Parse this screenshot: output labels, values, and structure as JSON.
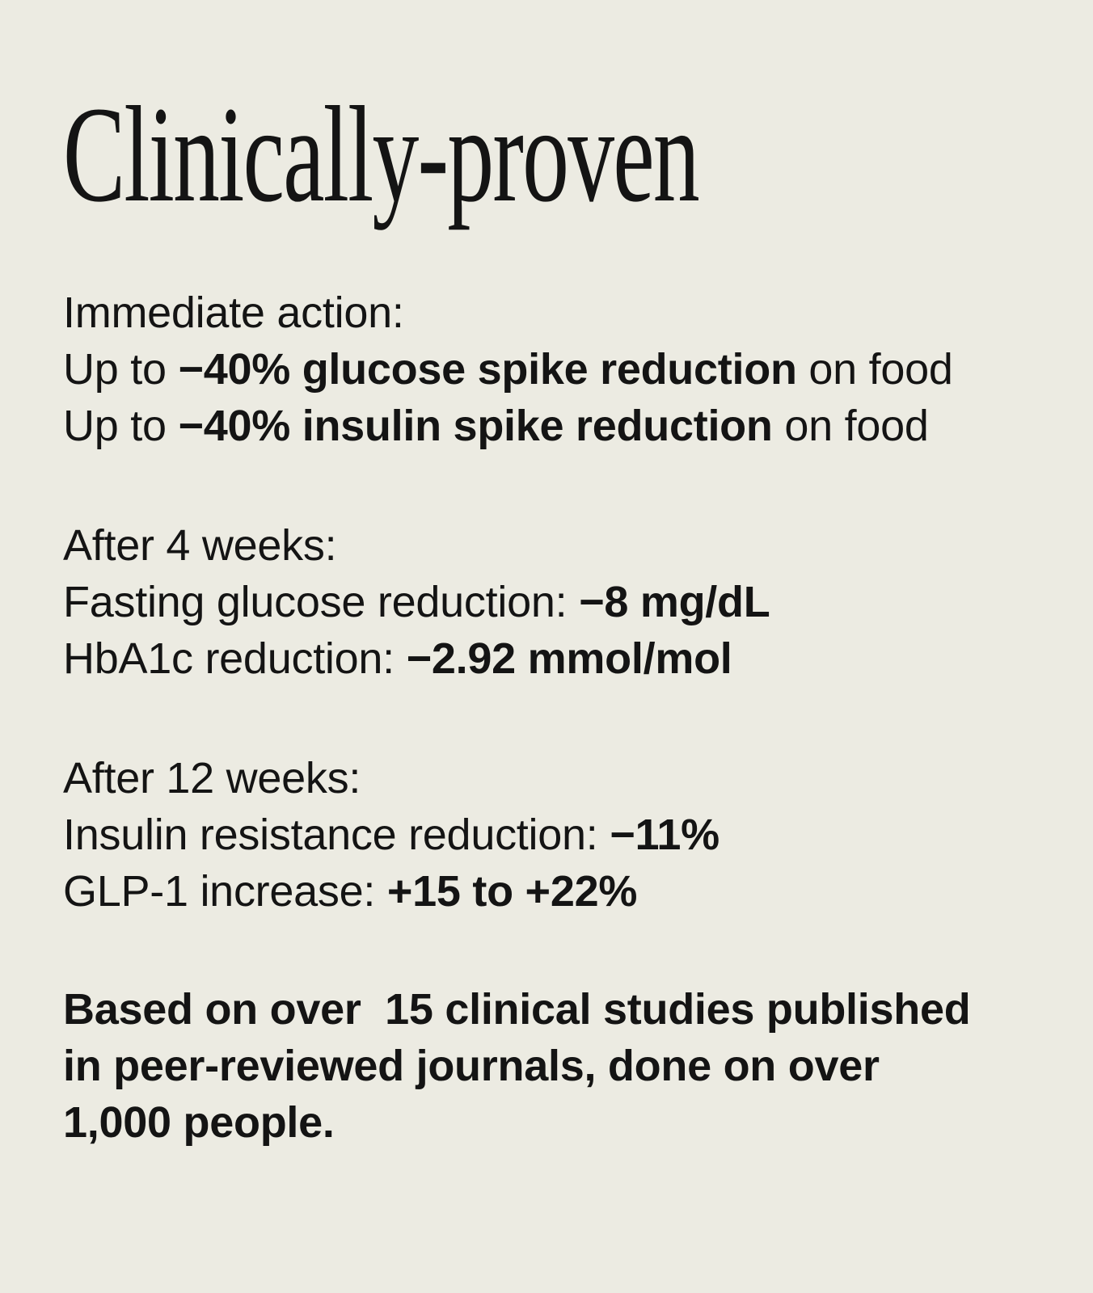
{
  "page": {
    "background_color": "#ECEBE2",
    "text_color": "#141414",
    "title": "Clinically-proven"
  },
  "sections": [
    {
      "heading": "Immediate action:",
      "lines": [
        {
          "pre": "Up to ",
          "bold": "−40% glucose spike reduction",
          "post": " on food"
        },
        {
          "pre": "Up to ",
          "bold": "−40% insulin spike reduction",
          "post": " on food"
        }
      ]
    },
    {
      "heading": "After 4 weeks:",
      "lines": [
        {
          "pre": "Fasting glucose reduction: ",
          "bold": "−8 mg/dL",
          "post": ""
        },
        {
          "pre": "HbA1c reduction: ",
          "bold": "−2.92 mmol/mol",
          "post": ""
        }
      ]
    },
    {
      "heading": "After 12 weeks:",
      "lines": [
        {
          "pre": "Insulin resistance reduction: ",
          "bold": "−11%",
          "post": ""
        },
        {
          "pre": "GLP-1 increase: ",
          "bold": "+15 to +22%",
          "post": ""
        }
      ]
    }
  ],
  "footer": {
    "text": "Based on over  15 clinical studies published\nin peer-reviewed journals, done on over\n1,000 people."
  }
}
